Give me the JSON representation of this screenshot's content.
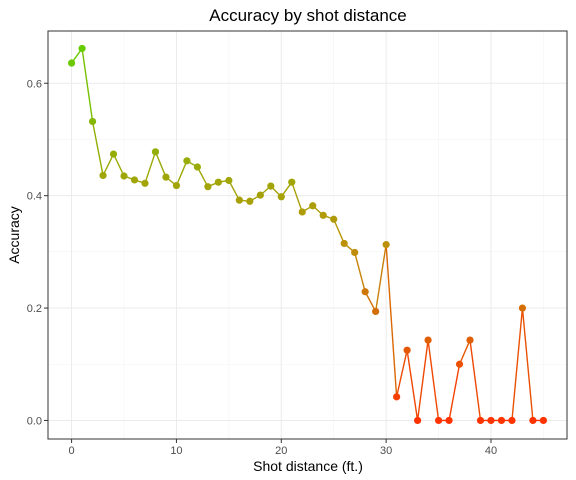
{
  "chart_data": {
    "type": "line",
    "title": "Accuracy by shot distance",
    "xlabel": "Shot distance (ft.)",
    "ylabel": "Accuracy",
    "xlim": [
      -2.25,
      47.25
    ],
    "ylim": [
      -0.033,
      0.693
    ],
    "x_ticks": [
      0,
      10,
      20,
      30,
      40
    ],
    "y_ticks": [
      0.0,
      0.2,
      0.4,
      0.6
    ],
    "x_tick_labels": [
      "0",
      "10",
      "20",
      "30",
      "40"
    ],
    "y_tick_labels": [
      "0.0",
      "0.2",
      "0.4",
      "0.6"
    ],
    "grid": true,
    "color_scale": {
      "high": "#66cc00",
      "mid": "#b8960a",
      "low": "#ff3300",
      "mapped_to": "accuracy"
    },
    "x": [
      0,
      1,
      2,
      3,
      4,
      5,
      6,
      7,
      8,
      9,
      10,
      11,
      12,
      13,
      14,
      15,
      16,
      17,
      18,
      19,
      20,
      21,
      22,
      23,
      24,
      25,
      26,
      27,
      28,
      29,
      30,
      31,
      32,
      33,
      34,
      35,
      36,
      37,
      38,
      39,
      40,
      41,
      42,
      43,
      44,
      45
    ],
    "y": [
      0.636,
      0.662,
      0.532,
      0.436,
      0.474,
      0.435,
      0.428,
      0.422,
      0.478,
      0.433,
      0.418,
      0.462,
      0.451,
      0.416,
      0.424,
      0.427,
      0.392,
      0.39,
      0.401,
      0.417,
      0.398,
      0.424,
      0.371,
      0.382,
      0.365,
      0.358,
      0.315,
      0.299,
      0.229,
      0.194,
      0.313,
      0.042,
      0.125,
      0.0,
      0.143,
      0.0,
      0.0,
      0.1,
      0.143,
      0.0,
      0.0,
      0.0,
      0.0,
      0.2,
      0.0,
      0.0
    ]
  }
}
